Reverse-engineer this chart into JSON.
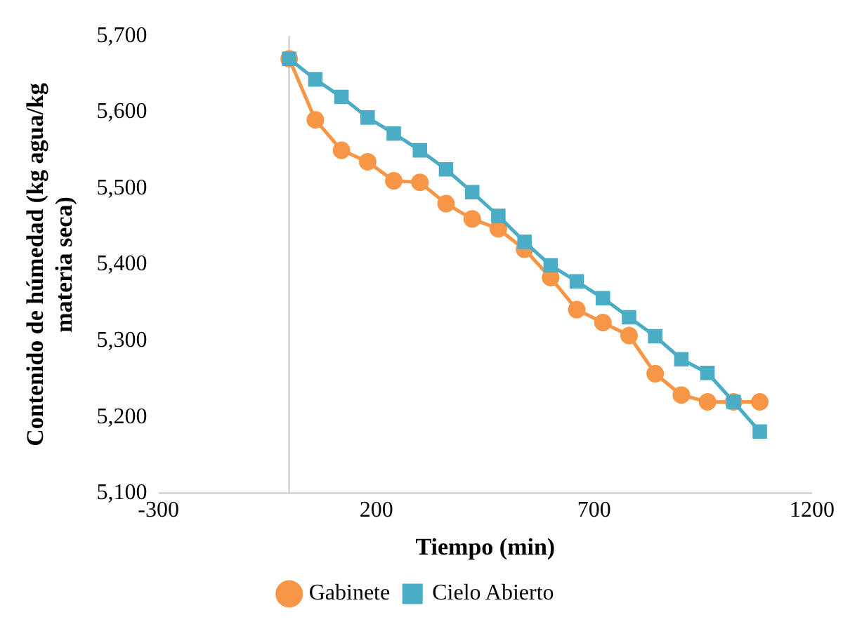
{
  "chart_data": {
    "type": "line",
    "xlabel": "Tiempo (min)",
    "ylabel": "Contenido de húmedad  (kg agua/kg materia seca)",
    "xlim": [
      -300,
      1200
    ],
    "xticks": [
      -300,
      200,
      700,
      1200
    ],
    "ylim": [
      5100,
      5700
    ],
    "yticks": [
      {
        "value": 5100,
        "label": "5,100"
      },
      {
        "value": 5200,
        "label": "5,200"
      },
      {
        "value": 5300,
        "label": "5,300"
      },
      {
        "value": 5400,
        "label": "5,400"
      },
      {
        "value": 5500,
        "label": "5,500"
      },
      {
        "value": 5600,
        "label": "5,600"
      },
      {
        "value": 5700,
        "label": "5,700"
      }
    ],
    "x": [
      0,
      60,
      120,
      180,
      240,
      300,
      360,
      420,
      480,
      540,
      600,
      660,
      720,
      780,
      840,
      900,
      960,
      1020,
      1080
    ],
    "series": [
      {
        "name": "Gabinete",
        "color": "#f79646",
        "marker": "circle",
        "values": [
          5670,
          5590,
          5550,
          5535,
          5510,
          5508,
          5480,
          5460,
          5447,
          5420,
          5383,
          5341,
          5324,
          5307,
          5257,
          5229,
          5220,
          5220,
          5220
        ]
      },
      {
        "name": "Cielo Abierto",
        "color": "#4bacc6",
        "marker": "square",
        "values": [
          5670,
          5643,
          5620,
          5593,
          5572,
          5550,
          5525,
          5495,
          5464,
          5430,
          5399,
          5378,
          5356,
          5331,
          5306,
          5276,
          5258,
          5220,
          5181
        ]
      }
    ],
    "ref_lines": [
      {
        "axis": "x",
        "value": 0,
        "color": "#d9d9d9"
      }
    ],
    "grid": false,
    "legend": "bottom"
  }
}
